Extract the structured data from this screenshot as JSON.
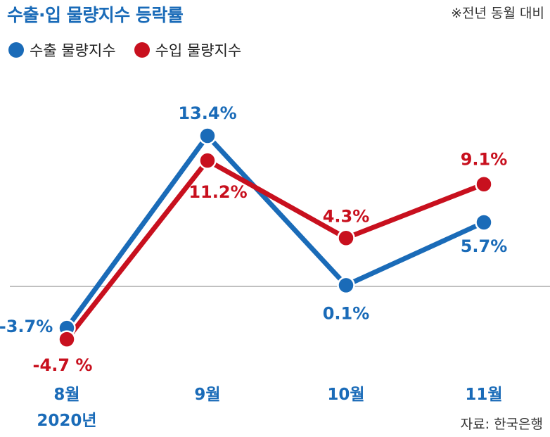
{
  "title": "수출·입 물량지수 등락률",
  "note": "※전년 동월 대비",
  "source": "자료: 한국은행",
  "year_label": "2020년",
  "colors": {
    "export": "#1a6bb8",
    "import": "#c8101e",
    "axis": "#9a9a9a"
  },
  "chart_data": {
    "type": "line",
    "categories": [
      "8월",
      "9월",
      "10월",
      "11월"
    ],
    "series": [
      {
        "name": "수출 물량지수",
        "values": [
          -3.7,
          13.4,
          0.1,
          5.7
        ],
        "labels": [
          "-3.7%",
          "13.4%",
          "0.1%",
          "5.7%"
        ]
      },
      {
        "name": "수입 물량지수",
        "values": [
          -4.7,
          11.2,
          4.3,
          9.1
        ],
        "labels": [
          "-4.7 %",
          "11.2%",
          "4.3%",
          "9.1%"
        ]
      }
    ],
    "ylim": [
      -6,
      17
    ]
  }
}
